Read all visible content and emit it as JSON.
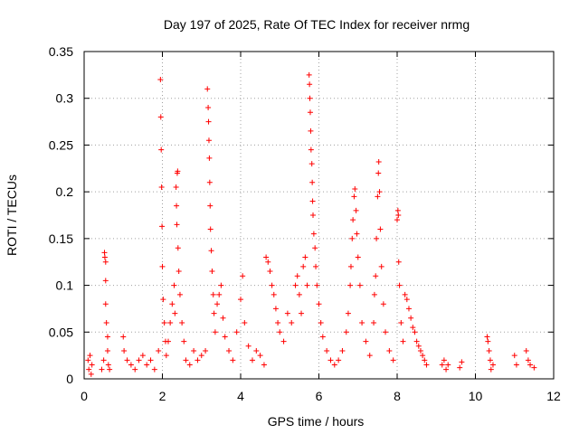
{
  "chart_data": {
    "type": "scatter",
    "title": "Day 197 of 2025, Rate Of TEC Index for receiver nrmg",
    "xlabel": "GPS time / hours",
    "ylabel": "ROTI / TECUs",
    "xlim": [
      0,
      12
    ],
    "ylim": [
      0,
      0.35
    ],
    "x_ticks": [
      0,
      2,
      4,
      6,
      8,
      10,
      12
    ],
    "x_tick_labels": [
      "0",
      "2",
      "4",
      "6",
      "8",
      "10",
      "12"
    ],
    "y_ticks": [
      0,
      0.05,
      0.1,
      0.15,
      0.2,
      0.25,
      0.3,
      0.35
    ],
    "y_tick_labels": [
      "0",
      "0.05",
      "0.1",
      "0.15",
      "0.2",
      "0.25",
      "0.3",
      "0.35"
    ],
    "grid": true,
    "marker": "+",
    "color": "#ff0000",
    "series": [
      {
        "name": "ROTI",
        "points": [
          [
            0.1,
            0.02
          ],
          [
            0.12,
            0.01
          ],
          [
            0.15,
            0.025
          ],
          [
            0.18,
            0.005
          ],
          [
            0.2,
            0.015
          ],
          [
            0.45,
            0.01
          ],
          [
            0.5,
            0.02
          ],
          [
            0.52,
            0.135
          ],
          [
            0.53,
            0.13
          ],
          [
            0.55,
            0.125
          ],
          [
            0.55,
            0.105
          ],
          [
            0.55,
            0.08
          ],
          [
            0.57,
            0.06
          ],
          [
            0.6,
            0.045
          ],
          [
            0.6,
            0.03
          ],
          [
            0.62,
            0.015
          ],
          [
            0.65,
            0.01
          ],
          [
            1.0,
            0.045
          ],
          [
            1.02,
            0.03
          ],
          [
            1.1,
            0.02
          ],
          [
            1.2,
            0.015
          ],
          [
            1.3,
            0.01
          ],
          [
            1.4,
            0.02
          ],
          [
            1.5,
            0.025
          ],
          [
            1.6,
            0.015
          ],
          [
            1.7,
            0.02
          ],
          [
            1.8,
            0.01
          ],
          [
            1.9,
            0.03
          ],
          [
            1.95,
            0.32
          ],
          [
            1.96,
            0.28
          ],
          [
            1.97,
            0.245
          ],
          [
            1.98,
            0.205
          ],
          [
            1.99,
            0.163
          ],
          [
            2.0,
            0.12
          ],
          [
            2.02,
            0.085
          ],
          [
            2.05,
            0.06
          ],
          [
            2.08,
            0.04
          ],
          [
            2.1,
            0.025
          ],
          [
            2.15,
            0.04
          ],
          [
            2.2,
            0.06
          ],
          [
            2.25,
            0.08
          ],
          [
            2.3,
            0.1
          ],
          [
            2.32,
            0.07
          ],
          [
            2.35,
            0.205
          ],
          [
            2.36,
            0.185
          ],
          [
            2.37,
            0.165
          ],
          [
            2.38,
            0.22
          ],
          [
            2.39,
            0.222
          ],
          [
            2.4,
            0.14
          ],
          [
            2.42,
            0.115
          ],
          [
            2.45,
            0.09
          ],
          [
            2.5,
            0.06
          ],
          [
            2.55,
            0.04
          ],
          [
            2.6,
            0.02
          ],
          [
            2.7,
            0.015
          ],
          [
            2.8,
            0.03
          ],
          [
            2.9,
            0.02
          ],
          [
            3.0,
            0.025
          ],
          [
            3.1,
            0.03
          ],
          [
            3.15,
            0.31
          ],
          [
            3.17,
            0.29
          ],
          [
            3.18,
            0.275
          ],
          [
            3.19,
            0.255
          ],
          [
            3.2,
            0.236
          ],
          [
            3.21,
            0.21
          ],
          [
            3.22,
            0.185
          ],
          [
            3.23,
            0.16
          ],
          [
            3.25,
            0.137
          ],
          [
            3.27,
            0.115
          ],
          [
            3.3,
            0.09
          ],
          [
            3.32,
            0.07
          ],
          [
            3.35,
            0.05
          ],
          [
            3.4,
            0.08
          ],
          [
            3.45,
            0.09
          ],
          [
            3.5,
            0.1
          ],
          [
            3.55,
            0.065
          ],
          [
            3.6,
            0.045
          ],
          [
            3.7,
            0.03
          ],
          [
            3.8,
            0.02
          ],
          [
            3.9,
            0.05
          ],
          [
            4.0,
            0.085
          ],
          [
            4.05,
            0.11
          ],
          [
            4.1,
            0.06
          ],
          [
            4.2,
            0.035
          ],
          [
            4.3,
            0.02
          ],
          [
            4.4,
            0.03
          ],
          [
            4.5,
            0.025
          ],
          [
            4.6,
            0.015
          ],
          [
            4.65,
            0.13
          ],
          [
            4.7,
            0.125
          ],
          [
            4.75,
            0.115
          ],
          [
            4.8,
            0.1
          ],
          [
            4.85,
            0.09
          ],
          [
            4.9,
            0.075
          ],
          [
            4.95,
            0.06
          ],
          [
            5.0,
            0.05
          ],
          [
            5.1,
            0.04
          ],
          [
            5.2,
            0.07
          ],
          [
            5.3,
            0.06
          ],
          [
            5.4,
            0.1
          ],
          [
            5.45,
            0.11
          ],
          [
            5.5,
            0.09
          ],
          [
            5.55,
            0.07
          ],
          [
            5.6,
            0.12
          ],
          [
            5.65,
            0.13
          ],
          [
            5.7,
            0.1
          ],
          [
            5.75,
            0.325
          ],
          [
            5.76,
            0.315
          ],
          [
            5.77,
            0.3
          ],
          [
            5.78,
            0.285
          ],
          [
            5.79,
            0.265
          ],
          [
            5.8,
            0.245
          ],
          [
            5.82,
            0.23
          ],
          [
            5.83,
            0.21
          ],
          [
            5.84,
            0.19
          ],
          [
            5.85,
            0.175
          ],
          [
            5.87,
            0.155
          ],
          [
            5.9,
            0.14
          ],
          [
            5.92,
            0.12
          ],
          [
            5.95,
            0.1
          ],
          [
            6.0,
            0.08
          ],
          [
            6.05,
            0.06
          ],
          [
            6.1,
            0.045
          ],
          [
            6.2,
            0.03
          ],
          [
            6.3,
            0.02
          ],
          [
            6.4,
            0.015
          ],
          [
            6.5,
            0.02
          ],
          [
            6.6,
            0.03
          ],
          [
            6.7,
            0.05
          ],
          [
            6.75,
            0.07
          ],
          [
            6.8,
            0.1
          ],
          [
            6.82,
            0.12
          ],
          [
            6.85,
            0.15
          ],
          [
            6.87,
            0.17
          ],
          [
            6.9,
            0.195
          ],
          [
            6.92,
            0.203
          ],
          [
            6.95,
            0.18
          ],
          [
            6.97,
            0.155
          ],
          [
            7.0,
            0.13
          ],
          [
            7.05,
            0.1
          ],
          [
            7.1,
            0.06
          ],
          [
            7.2,
            0.04
          ],
          [
            7.3,
            0.025
          ],
          [
            7.4,
            0.06
          ],
          [
            7.42,
            0.09
          ],
          [
            7.45,
            0.11
          ],
          [
            7.47,
            0.15
          ],
          [
            7.5,
            0.195
          ],
          [
            7.52,
            0.22
          ],
          [
            7.53,
            0.232
          ],
          [
            7.55,
            0.2
          ],
          [
            7.57,
            0.16
          ],
          [
            7.6,
            0.12
          ],
          [
            7.65,
            0.08
          ],
          [
            7.7,
            0.05
          ],
          [
            7.8,
            0.03
          ],
          [
            7.9,
            0.02
          ],
          [
            8.0,
            0.17
          ],
          [
            8.02,
            0.18
          ],
          [
            8.03,
            0.175
          ],
          [
            8.04,
            0.125
          ],
          [
            8.06,
            0.1
          ],
          [
            8.1,
            0.06
          ],
          [
            8.15,
            0.04
          ],
          [
            8.2,
            0.09
          ],
          [
            8.25,
            0.085
          ],
          [
            8.3,
            0.075
          ],
          [
            8.35,
            0.065
          ],
          [
            8.4,
            0.055
          ],
          [
            8.45,
            0.05
          ],
          [
            8.5,
            0.04
          ],
          [
            8.55,
            0.035
          ],
          [
            8.6,
            0.03
          ],
          [
            8.65,
            0.025
          ],
          [
            8.7,
            0.02
          ],
          [
            8.75,
            0.015
          ],
          [
            9.15,
            0.015
          ],
          [
            9.2,
            0.02
          ],
          [
            9.25,
            0.01
          ],
          [
            9.3,
            0.015
          ],
          [
            9.6,
            0.012
          ],
          [
            9.65,
            0.018
          ],
          [
            10.3,
            0.045
          ],
          [
            10.32,
            0.04
          ],
          [
            10.35,
            0.03
          ],
          [
            10.38,
            0.02
          ],
          [
            10.4,
            0.01
          ],
          [
            10.45,
            0.015
          ],
          [
            11.0,
            0.025
          ],
          [
            11.05,
            0.015
          ],
          [
            11.3,
            0.03
          ],
          [
            11.35,
            0.02
          ],
          [
            11.4,
            0.015
          ],
          [
            11.5,
            0.012
          ]
        ]
      }
    ]
  }
}
